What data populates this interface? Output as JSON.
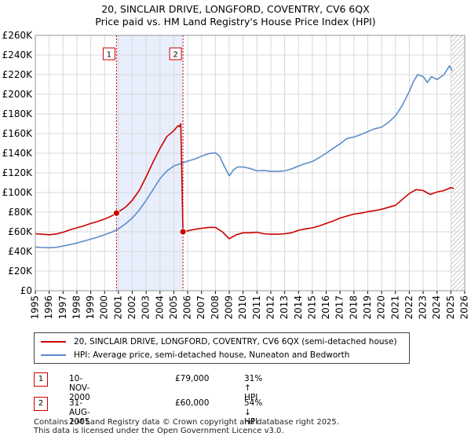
{
  "chart_data": {
    "type": "line",
    "title": "20, SINCLAIR DRIVE, LONGFORD, COVENTRY, CV6 6QX",
    "subtitle": "Price paid vs. HM Land Registry's House Price Index (HPI)",
    "xlim": [
      1995,
      2026
    ],
    "ylim": [
      0,
      260000
    ],
    "x_ticks": [
      "1995",
      "1996",
      "1997",
      "1998",
      "1999",
      "2000",
      "2001",
      "2002",
      "2003",
      "2004",
      "2005",
      "2006",
      "2007",
      "2008",
      "2009",
      "2010",
      "2011",
      "2012",
      "2013",
      "2014",
      "2015",
      "2016",
      "2017",
      "2018",
      "2019",
      "2020",
      "2021",
      "2022",
      "2023",
      "2024",
      "2025",
      "2026"
    ],
    "y_ticks": [
      "£0",
      "£20K",
      "£40K",
      "£60K",
      "£80K",
      "£100K",
      "£120K",
      "£140K",
      "£160K",
      "£180K",
      "£200K",
      "£220K",
      "£240K",
      "£260K"
    ],
    "series": [
      {
        "name": "20, SINCLAIR DRIVE, LONGFORD, COVENTRY, CV6 6QX (semi-detached house)",
        "color": "#cc0000",
        "x": [
          1995.0,
          1995.5,
          1996.0,
          1996.5,
          1997.0,
          1997.5,
          1998.0,
          1998.5,
          1999.0,
          1999.5,
          2000.0,
          2000.5,
          2000.86,
          2001.5,
          2002.0,
          2002.5,
          2003.0,
          2003.5,
          2004.0,
          2004.5,
          2005.0,
          2005.3,
          2005.4,
          2005.5,
          2005.66,
          2006.0,
          2006.5,
          2007.0,
          2007.5,
          2008.0,
          2008.5,
          2009.0,
          2009.5,
          2010.0,
          2010.5,
          2011.0,
          2011.5,
          2012.0,
          2012.5,
          2013.0,
          2013.5,
          2014.0,
          2014.5,
          2015.0,
          2015.5,
          2016.0,
          2016.5,
          2017.0,
          2017.5,
          2018.0,
          2018.5,
          2019.0,
          2019.5,
          2020.0,
          2020.5,
          2021.0,
          2021.5,
          2022.0,
          2022.5,
          2023.0,
          2023.5,
          2024.0,
          2024.5,
          2025.0,
          2025.2
        ],
        "values": [
          58000,
          57500,
          57000,
          57800,
          59500,
          62000,
          64000,
          66000,
          68500,
          70500,
          73000,
          76000,
          79000,
          85000,
          92000,
          102000,
          116000,
          131000,
          145000,
          157000,
          163000,
          168000,
          167000,
          170000,
          60000,
          61000,
          62500,
          63500,
          64500,
          64500,
          60000,
          53000,
          57000,
          59000,
          59000,
          59500,
          58000,
          57500,
          57500,
          58000,
          59000,
          61500,
          63000,
          64000,
          66000,
          68500,
          71000,
          74000,
          76000,
          78000,
          79000,
          80500,
          81500,
          83000,
          85000,
          87000,
          93000,
          99000,
          103000,
          102000,
          98000,
          100500,
          102000,
          105000,
          104000
        ]
      },
      {
        "name": "HPI: Average price, semi-detached house, Nuneaton and Bedworth",
        "color": "#5b8dc9",
        "x": [
          1995.0,
          1995.5,
          1996.0,
          1996.5,
          1997.0,
          1997.5,
          1998.0,
          1998.5,
          1999.0,
          1999.5,
          2000.0,
          2000.5,
          2001.0,
          2001.5,
          2002.0,
          2002.5,
          2003.0,
          2003.5,
          2004.0,
          2004.5,
          2005.0,
          2005.5,
          2006.0,
          2006.5,
          2007.0,
          2007.5,
          2008.0,
          2008.3,
          2008.6,
          2009.0,
          2009.3,
          2009.6,
          2010.0,
          2010.5,
          2011.0,
          2011.5,
          2012.0,
          2012.5,
          2013.0,
          2013.5,
          2014.0,
          2014.5,
          2015.0,
          2015.5,
          2016.0,
          2016.5,
          2017.0,
          2017.5,
          2018.0,
          2018.5,
          2019.0,
          2019.5,
          2020.0,
          2020.5,
          2021.0,
          2021.5,
          2022.0,
          2022.3,
          2022.6,
          2023.0,
          2023.3,
          2023.6,
          2024.0,
          2024.5,
          2024.9,
          2025.1
        ],
        "values": [
          44500,
          44000,
          43800,
          44200,
          45500,
          47000,
          48500,
          50500,
          52500,
          54500,
          57000,
          59500,
          63000,
          68000,
          74000,
          82000,
          92000,
          103000,
          114000,
          122000,
          127000,
          129500,
          132000,
          134000,
          137000,
          139500,
          140500,
          137000,
          128000,
          117000,
          123000,
          126000,
          126000,
          124500,
          122000,
          122500,
          121500,
          121500,
          122000,
          124000,
          127000,
          129500,
          131500,
          135500,
          140000,
          145000,
          149500,
          155000,
          156500,
          159000,
          162000,
          165000,
          166500,
          171500,
          178000,
          189000,
          203000,
          213000,
          220000,
          218000,
          212000,
          218000,
          215000,
          220000,
          229000,
          224000
        ]
      }
    ],
    "annotations": [
      {
        "label": "1",
        "x": 2000.86,
        "value": 79000
      },
      {
        "label": "2",
        "x": 2005.66,
        "value": 60000
      }
    ],
    "shaded_region": [
      2000.86,
      2005.66
    ],
    "hatched_region": [
      2025.0,
      2026.0
    ]
  },
  "legend": {
    "red_label": "20, SINCLAIR DRIVE, LONGFORD, COVENTRY, CV6 6QX (semi-detached house)",
    "blue_label": "HPI: Average price, semi-detached house, Nuneaton and Bedworth"
  },
  "transactions": [
    {
      "badge": "1",
      "date": "10-NOV-2000",
      "price": "£79,000",
      "hpi": "31% ↑ HPI"
    },
    {
      "badge": "2",
      "date": "31-AUG-2005",
      "price": "£60,000",
      "hpi": "54% ↓ HPI"
    }
  ],
  "footer": {
    "line1": "Contains HM Land Registry data © Crown copyright and database right 2025.",
    "line2": "This data is licensed under the Open Government Licence v3.0."
  },
  "colors": {
    "red": "#cc0000",
    "blue": "#5b8dc9",
    "shade": "#e8eefb",
    "grid": "#d8d8d8"
  }
}
